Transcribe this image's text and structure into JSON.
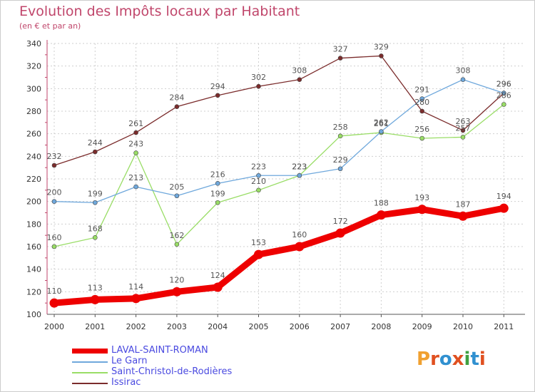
{
  "header": {
    "title": "Evolution des Impôts locaux par Habitant",
    "subtitle": "(en € et par an)"
  },
  "logo": {
    "text": "Proxiti",
    "colors": [
      "#f0a030",
      "#e05020",
      "#3090d0",
      "#e05020",
      "#40a040",
      "#3090d0",
      "#e05020"
    ]
  },
  "chart_data": {
    "type": "line",
    "title": "Evolution des Impôts locaux par Habitant",
    "subtitle": "(en € et par an)",
    "xlabel": "",
    "ylabel": "",
    "categories": [
      "2000",
      "2001",
      "2002",
      "2003",
      "2004",
      "2005",
      "2006",
      "2007",
      "2008",
      "2009",
      "2010",
      "2011"
    ],
    "ylim": [
      100,
      340
    ],
    "yticks": [
      100,
      120,
      140,
      160,
      180,
      200,
      220,
      240,
      260,
      280,
      300,
      320,
      340
    ],
    "grid": true,
    "legend_position": "bottom-left",
    "series": [
      {
        "name": "LAVAL-SAINT-ROMAN",
        "color": "#ee0000",
        "values": [
          110,
          113,
          114,
          120,
          124,
          153,
          160,
          172,
          188,
          193,
          187,
          194
        ]
      },
      {
        "name": "Le Garn",
        "color": "#6fa8dc",
        "values": [
          200,
          199,
          213,
          205,
          216,
          223,
          223,
          229,
          262,
          291,
          308,
          296
        ]
      },
      {
        "name": "Saint-Christol-de-Rodières",
        "color": "#99dd66",
        "values": [
          160,
          168,
          243,
          162,
          199,
          210,
          223,
          258,
          261,
          256,
          257,
          286
        ]
      },
      {
        "name": "Issirac",
        "color": "#7b2c2c",
        "values": [
          232,
          244,
          261,
          284,
          294,
          302,
          308,
          327,
          329,
          280,
          263,
          296
        ]
      }
    ]
  }
}
